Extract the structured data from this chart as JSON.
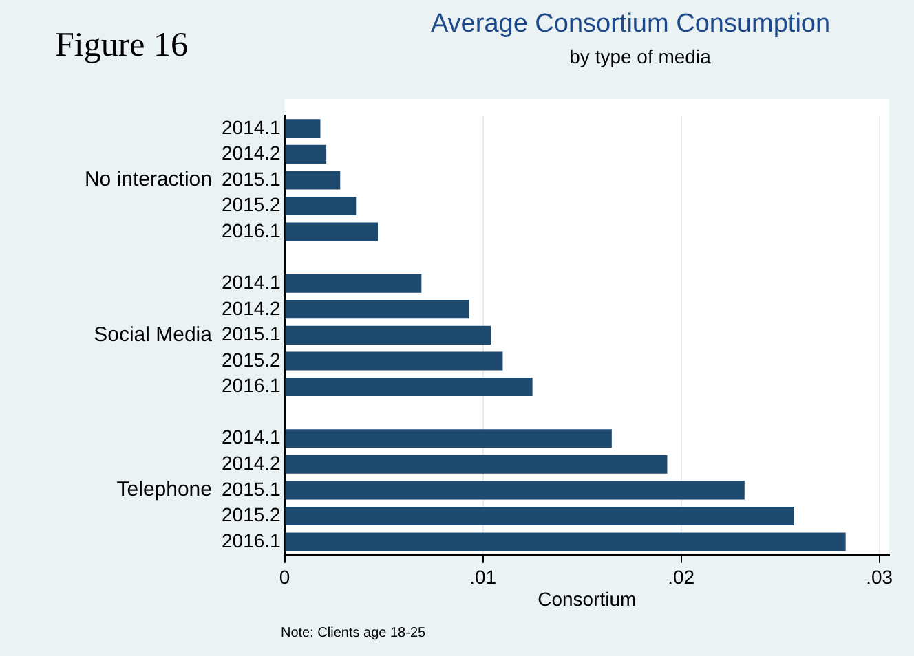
{
  "chart_data": {
    "type": "bar",
    "orientation": "horizontal",
    "title": "Average Consortium Consumption",
    "subtitle": "by type of media",
    "xlabel": "Consortium",
    "categories": [
      "2014.1",
      "2014.2",
      "2015.1",
      "2015.2",
      "2016.1",
      null,
      "2014.1",
      "2014.2",
      "2015.1",
      "2015.2",
      "2016.1",
      null,
      "2014.1",
      "2014.2",
      "2015.1",
      "2015.2",
      "2016.1"
    ],
    "values": [
      0.0018,
      0.0021,
      0.0028,
      0.0036,
      0.0047,
      null,
      0.0069,
      0.0093,
      0.0104,
      0.011,
      0.0125,
      null,
      0.0165,
      0.0193,
      0.0232,
      0.0257,
      0.0283
    ],
    "color": "#1f4a70",
    "xlim": [
      0,
      0.0305
    ],
    "xticks": [
      0,
      {
        "value": 0.01,
        "label": ".01"
      },
      {
        "value": 0.02,
        "label": ".02"
      },
      {
        "value": 0.03,
        "label": ".03"
      }
    ],
    "grid": "x",
    "legend": false,
    "annotations": [
      "Figure 16",
      "No interaction",
      "Social Media",
      "Telephone",
      "Note: Clients age 18-25"
    ]
  }
}
